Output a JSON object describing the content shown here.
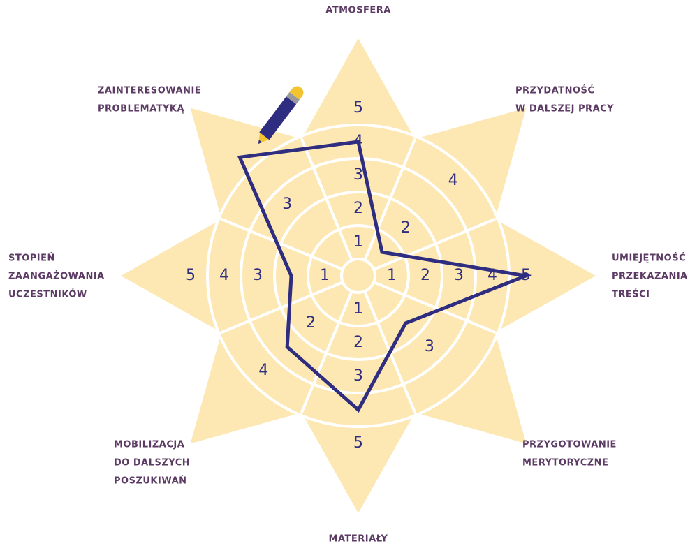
{
  "chart_data": {
    "type": "radar",
    "axes": [
      {
        "label_lines": [
          "ATMOSFERA"
        ],
        "ticks": [
          1,
          2,
          3,
          4,
          5
        ]
      },
      {
        "label_lines": [
          "PRZYDATNOŚĆ",
          "W DALSZEJ PRACY"
        ],
        "ticks": [
          2,
          4
        ]
      },
      {
        "label_lines": [
          "UMIEJĘTNOŚĆ",
          "PRZEKAZANIA",
          "TREŚCI"
        ],
        "ticks": [
          1,
          2,
          3,
          4,
          5
        ]
      },
      {
        "label_lines": [
          "PRZYGOTOWANIE",
          "MERYTORYCZNE"
        ],
        "ticks": [
          3
        ]
      },
      {
        "label_lines": [
          "MATERIAŁY"
        ],
        "ticks": [
          1,
          2,
          3,
          5
        ]
      },
      {
        "label_lines": [
          "MOBILIZACJA",
          "DO DALSZYCH",
          "POSZUKIWAŃ"
        ],
        "ticks": [
          2,
          4
        ]
      },
      {
        "label_lines": [
          "STOPIEŃ",
          "ZAANGAŻOWANIA",
          "UCZESTNIKÓW"
        ],
        "ticks": [
          1,
          3,
          4,
          5
        ]
      },
      {
        "label_lines": [
          "ZAINTERESOWANIE",
          "PROBLEMATYKĄ"
        ],
        "ticks": [
          3
        ]
      }
    ],
    "rlim": [
      0,
      5
    ],
    "values": [
      4,
      1,
      5,
      2,
      4,
      3,
      2,
      5
    ],
    "color": "#2e2d80",
    "fill": "#fde8b4",
    "tick_color": "#2e2d80",
    "label_color": "#5b3a63"
  }
}
